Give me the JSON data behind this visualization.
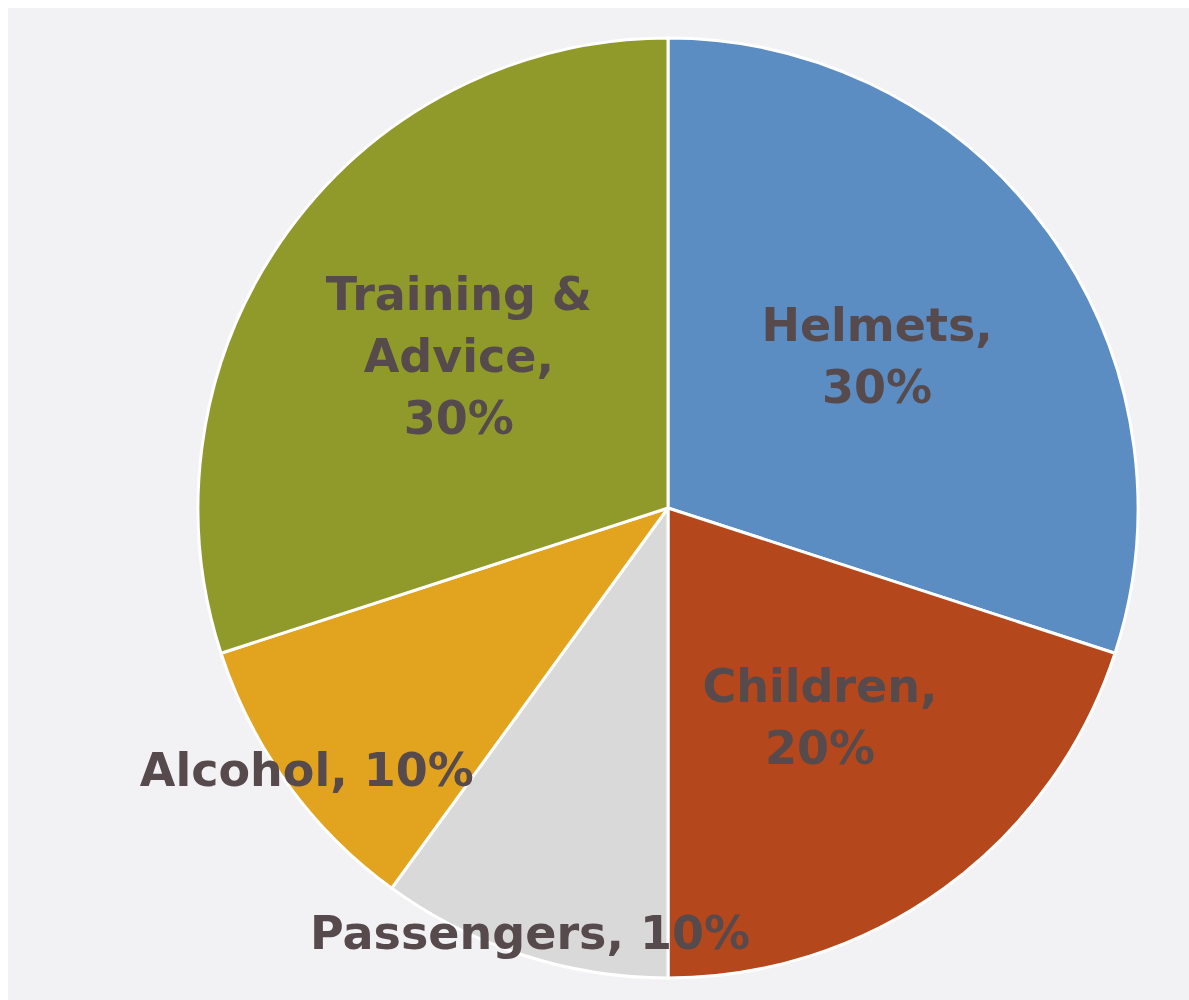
{
  "chart_data": {
    "type": "pie",
    "categories": [
      "Helmets",
      "Children",
      "Passengers",
      "Alcohol",
      "Training & Advice"
    ],
    "values": [
      30,
      20,
      10,
      10,
      30
    ],
    "colors": [
      "#5b8cc2",
      "#b4471b",
      "#d9d9d9",
      "#e2a41f",
      "#8f9a2b"
    ],
    "value_labels": [
      ", 30%",
      ", 20%",
      ", 10%",
      ", 10%",
      ", 30%"
    ]
  }
}
